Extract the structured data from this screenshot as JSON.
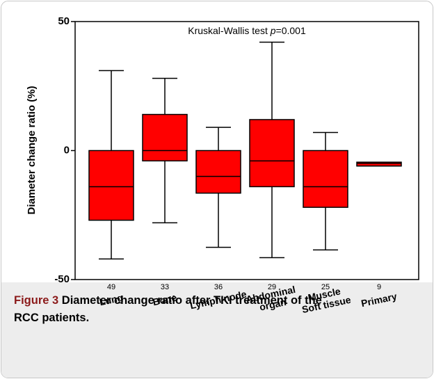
{
  "chart_data": {
    "type": "box",
    "ylabel": "Diameter change ratio (%)",
    "annotation": {
      "text": "Kruskal-Wallis test",
      "stat_symbol": "p",
      "stat_value": "=0.001"
    },
    "categories": [
      [
        "Lung"
      ],
      [
        "Bone"
      ],
      [
        "Lymph node"
      ],
      [
        "Abdominal",
        "organ"
      ],
      [
        "Muscle",
        "Soft tissue"
      ],
      [
        "Primary"
      ]
    ],
    "counts": [
      49,
      33,
      36,
      29,
      25,
      9
    ],
    "boxes": [
      {
        "whisker_high": 31,
        "q3": 0,
        "median": -14,
        "q1": -27,
        "whisker_low": -42
      },
      {
        "whisker_high": 28,
        "q3": 14,
        "median": 0,
        "q1": -4,
        "whisker_low": -28
      },
      {
        "whisker_high": 9,
        "q3": 0,
        "median": -10,
        "q1": -16.5,
        "whisker_low": -37.5
      },
      {
        "whisker_high": 42,
        "q3": 12,
        "median": -4,
        "q1": -14,
        "whisker_low": -41.5
      },
      {
        "whisker_high": 7,
        "q3": 0,
        "median": -14,
        "q1": -22,
        "whisker_low": -38.5
      },
      {
        "whisker_high": -4.5,
        "q3": -4.5,
        "median": -5,
        "q1": -6,
        "whisker_low": -6
      }
    ],
    "color": "#ff0000",
    "ylim": [
      -50,
      50
    ],
    "yticks": [
      -50,
      0,
      50
    ]
  },
  "caption": {
    "label": "Figure 3",
    "text": "Diameter change ratio after TKI treatment of the RCC patients."
  }
}
